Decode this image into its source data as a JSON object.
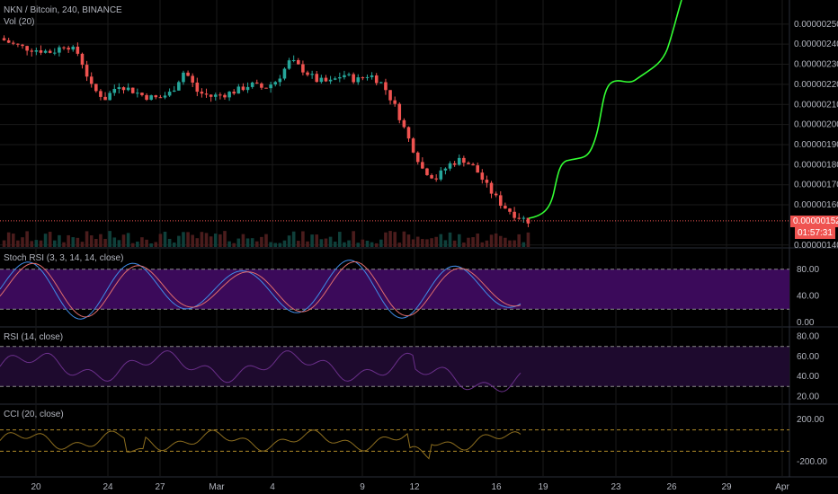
{
  "header": {
    "symbol_title": "NKN / Bitcoin, 240, BINANCE",
    "volume_label": "Vol (20)"
  },
  "price_tag": {
    "value": "0.00000152",
    "countdown": "01:57:31"
  },
  "panes": {
    "stoch_label": "Stoch RSI (3, 3, 14, 14, close)",
    "rsi_label": "RSI (14, close)",
    "cci_label": "CCI (20, close)"
  },
  "colors": {
    "up": "#26a69a",
    "down": "#ef5350",
    "projection": "#33ff33",
    "stoch_k": "#3f8ce8",
    "stoch_d": "#e06d6d",
    "band_fill": "#3b0a5a",
    "rsi_line": "#6a2f8a",
    "cci_line": "#8d6e1f",
    "price_line": "#ef5350"
  },
  "chart_data": [
    {
      "type": "candlestick",
      "title": "NKN / Bitcoin, 240, BINANCE",
      "y_ticks": [
        "0.00000250",
        "0.00000240",
        "0.00000230",
        "0.00000220",
        "0.00000210",
        "0.00000200",
        "0.00000190",
        "0.00000180",
        "0.00000170",
        "0.00000160",
        "0.00000140"
      ],
      "ylim": [
        1.39e-06,
        2.62e-06
      ],
      "x_ticks": [
        "20",
        "24",
        "27",
        "Mar",
        "4",
        "9",
        "12",
        "16",
        "19",
        "23",
        "26",
        "29",
        "Apr"
      ],
      "approx_close_path": [
        [
          0,
          2.43e-06
        ],
        [
          5,
          2.4e-06
        ],
        [
          10,
          2.38e-06
        ],
        [
          15,
          2.37e-06
        ],
        [
          20,
          2.36e-06
        ],
        [
          25,
          2.4e-06
        ],
        [
          30,
          2.35e-06
        ],
        [
          35,
          2.18e-06
        ],
        [
          40,
          2.13e-06
        ],
        [
          45,
          2.2e-06
        ],
        [
          50,
          2.17e-06
        ],
        [
          55,
          2.14e-06
        ],
        [
          60,
          2.13e-06
        ],
        [
          65,
          2.16e-06
        ],
        [
          70,
          2.27e-06
        ],
        [
          75,
          2.16e-06
        ],
        [
          80,
          2.14e-06
        ],
        [
          85,
          2.15e-06
        ],
        [
          90,
          2.17e-06
        ],
        [
          95,
          2.2e-06
        ],
        [
          100,
          2.18e-06
        ],
        [
          105,
          2.22e-06
        ],
        [
          110,
          2.32e-06
        ],
        [
          115,
          2.27e-06
        ],
        [
          120,
          2.22e-06
        ],
        [
          125,
          2.21e-06
        ],
        [
          130,
          2.25e-06
        ],
        [
          135,
          2.22e-06
        ],
        [
          140,
          2.25e-06
        ],
        [
          145,
          2.2e-06
        ],
        [
          150,
          2.08e-06
        ],
        [
          155,
          1.92e-06
        ],
        [
          160,
          1.78e-06
        ],
        [
          165,
          1.73e-06
        ],
        [
          170,
          1.8e-06
        ],
        [
          175,
          1.83e-06
        ],
        [
          180,
          1.78e-06
        ],
        [
          185,
          1.68e-06
        ],
        [
          190,
          1.6e-06
        ],
        [
          195,
          1.55e-06
        ],
        [
          200,
          1.52e-06
        ]
      ],
      "projection_note": "",
      "last_price": 1.52e-06
    },
    {
      "type": "line",
      "title": "Stoch RSI (3, 3, 14, 14, close)",
      "y_ticks": [
        "80.00",
        "40.00",
        "0.00"
      ],
      "ylim": [
        0,
        100
      ],
      "bands": [
        20,
        80
      ]
    },
    {
      "type": "line",
      "title": "RSI (14, close)",
      "y_ticks": [
        "80.00",
        "60.00",
        "40.00",
        "20.00"
      ],
      "ylim": [
        15,
        85
      ],
      "bands": [
        30,
        70
      ]
    },
    {
      "type": "line",
      "title": "CCI (20, close)",
      "y_ticks": [
        "200.00",
        "-200.00"
      ],
      "ylim": [
        -300,
        300
      ],
      "bands": [
        -100,
        100
      ]
    }
  ]
}
